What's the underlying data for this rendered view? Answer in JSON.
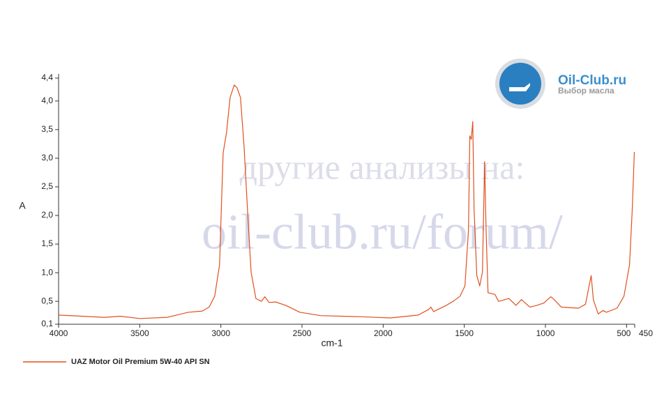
{
  "chart_data": {
    "type": "line",
    "x_label": "cm-1",
    "y_label": "A",
    "x": [
      4000,
      3716,
      3620,
      3500,
      3330,
      3200,
      3115,
      3072,
      3038,
      3008,
      2986,
      2965,
      2943,
      2918,
      2900,
      2879,
      2857,
      2836,
      2814,
      2784,
      2750,
      2729,
      2703,
      2664,
      2600,
      2514,
      2385,
      2127,
      1956,
      1784,
      1719,
      1706,
      1689,
      1611,
      1569,
      1526,
      1496,
      1474,
      1466,
      1457,
      1448,
      1440,
      1423,
      1405,
      1388,
      1375,
      1366,
      1354,
      1311,
      1289,
      1225,
      1182,
      1148,
      1096,
      1053,
      1010,
      967,
      946,
      903,
      796,
      753,
      731,
      718,
      705,
      675,
      645,
      624,
      559,
      516,
      482,
      465,
      452
    ],
    "series": [
      {
        "name": "UAZ Motor Oil Premium 5W-40 API SN",
        "color": "#e0501e",
        "values": [
          0.26,
          0.22,
          0.24,
          0.2,
          0.22,
          0.31,
          0.33,
          0.4,
          0.59,
          1.14,
          3.09,
          3.45,
          4.06,
          4.28,
          4.23,
          4.06,
          3.21,
          2.11,
          1.01,
          0.55,
          0.5,
          0.58,
          0.48,
          0.49,
          0.43,
          0.31,
          0.25,
          0.23,
          0.21,
          0.26,
          0.36,
          0.4,
          0.32,
          0.43,
          0.5,
          0.59,
          0.77,
          1.75,
          3.39,
          3.33,
          3.64,
          2.11,
          0.95,
          0.77,
          1.01,
          2.94,
          1.75,
          0.65,
          0.62,
          0.5,
          0.55,
          0.43,
          0.53,
          0.4,
          0.43,
          0.47,
          0.58,
          0.53,
          0.4,
          0.38,
          0.45,
          0.77,
          0.95,
          0.53,
          0.28,
          0.34,
          0.31,
          0.38,
          0.59,
          1.14,
          2.11,
          3.11
        ]
      }
    ],
    "xlim": [
      4000,
      450
    ],
    "ylim": [
      0.1,
      4.4
    ],
    "xticks": [
      4000,
      3500,
      3000,
      2500,
      2000,
      1500,
      1000,
      500,
      450
    ],
    "yticks": [
      {
        "value": 0.1,
        "label": "0,1"
      },
      {
        "value": 0.5,
        "label": "0,5"
      },
      {
        "value": 1.0,
        "label": "1,0"
      },
      {
        "value": 1.5,
        "label": "1,5"
      },
      {
        "value": 2.0,
        "label": "2,0"
      },
      {
        "value": 2.5,
        "label": "2,5"
      },
      {
        "value": 3.0,
        "label": "3,0"
      },
      {
        "value": 3.5,
        "label": "3,5"
      },
      {
        "value": 4.0,
        "label": "4,0"
      },
      {
        "value": 4.4,
        "label": "4,4"
      }
    ],
    "grid": false,
    "watermark": [
      "другие анализы на:",
      "oil-club.ru/forum/"
    ],
    "logo": {
      "title": "Oil-Club.ru",
      "subtitle": "Выбор масла"
    }
  }
}
